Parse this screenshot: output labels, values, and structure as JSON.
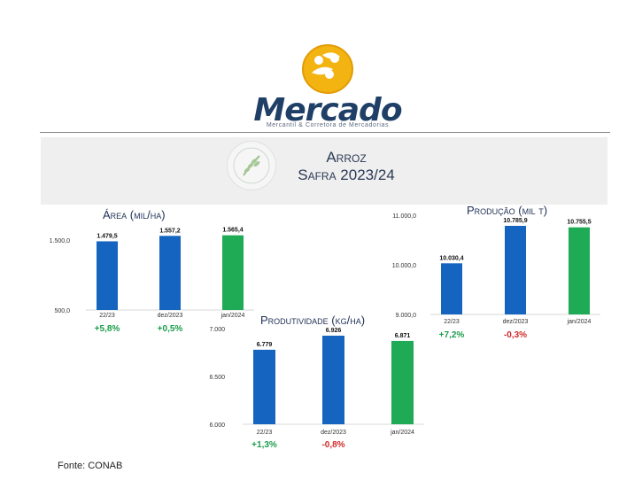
{
  "logo": {
    "word": "Mercado",
    "subtitle": "Mercantil & Corretora de Mercadorias"
  },
  "banner": {
    "line1": "Arroz",
    "line2": "Safra 2023/24",
    "icon": "rice-grain-icon"
  },
  "colors": {
    "blue": "#1565c0",
    "green": "#1faa55",
    "positive": "#1a9e4a",
    "negative": "#d02a2a"
  },
  "source": "Fonte: CONAB",
  "chart_data": [
    {
      "type": "bar",
      "title": "Área (mil/ha)",
      "categories": [
        "22/23",
        "dez/2023",
        "jan/2024"
      ],
      "values": [
        1479.5,
        1557.2,
        1565.4
      ],
      "value_labels": [
        "1.479,5",
        "1.557,2",
        "1.565,4"
      ],
      "ylim": [
        500,
        1700
      ],
      "yticks": [
        500,
        1500
      ],
      "ytick_labels": [
        "500,0",
        "1.500,0"
      ],
      "changes": [
        "+5,8%",
        "+0,5%"
      ],
      "grid": false
    },
    {
      "type": "bar",
      "title": "Produção (mil t)",
      "categories": [
        "22/23",
        "dez/2023",
        "jan/2024"
      ],
      "values": [
        10030.4,
        10785.9,
        10755.5
      ],
      "value_labels": [
        "10.030,4",
        "10.785,9",
        "10.755,5"
      ],
      "ylim": [
        9000,
        11000
      ],
      "yticks": [
        9000,
        10000,
        11000
      ],
      "ytick_labels": [
        "9.000,0",
        "10.000,0",
        "11.000,0"
      ],
      "changes": [
        "+7,2%",
        "-0,3%"
      ],
      "grid": false
    },
    {
      "type": "bar",
      "title": "Produtividade (kg/ha)",
      "categories": [
        "22/23",
        "dez/2023",
        "jan/2024"
      ],
      "values": [
        6779,
        6926,
        6871
      ],
      "value_labels": [
        "6.779",
        "6.926",
        "6.871"
      ],
      "ylim": [
        6000,
        7000
      ],
      "yticks": [
        6000,
        6500,
        7000
      ],
      "ytick_labels": [
        "6.000",
        "6.500",
        "7.000"
      ],
      "changes": [
        "+1,3%",
        "-0,8%"
      ],
      "grid": false
    }
  ]
}
